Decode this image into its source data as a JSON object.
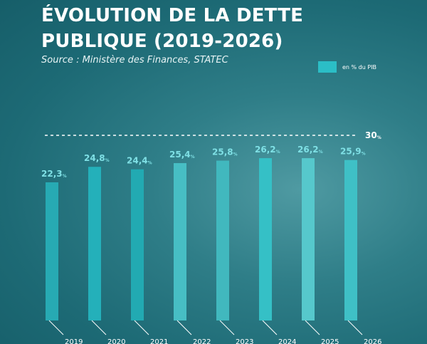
{
  "header": {
    "title": "ÉVOLUTION DE LA DETTE PUBLIQUE (2019-2026)",
    "source": "Source : Ministère des Finances, STATEC"
  },
  "legend": {
    "label": "en % du PIB",
    "color": "#2bbec6"
  },
  "chart_data": {
    "type": "bar",
    "categories": [
      "2019",
      "2020",
      "2021",
      "2022",
      "2023",
      "2024",
      "2025",
      "2026"
    ],
    "values": [
      22.3,
      24.8,
      24.4,
      25.4,
      25.8,
      26.2,
      26.2,
      25.9
    ],
    "value_labels": [
      "22,3",
      "24,8",
      "24,4",
      "25,4",
      "25,8",
      "26,2",
      "26,2",
      "25,9"
    ],
    "unit_suffix": "%",
    "reference_line": {
      "value": 30,
      "label": "30",
      "unit": "%",
      "style": "dashed"
    },
    "bar_colors": [
      "#27aab3",
      "#24b0ba",
      "#22aab2",
      "#47bec4",
      "#41b8be",
      "#35c0c6",
      "#56c8cc",
      "#3fc0c6"
    ],
    "ylim": [
      0,
      30
    ],
    "grid": false
  }
}
